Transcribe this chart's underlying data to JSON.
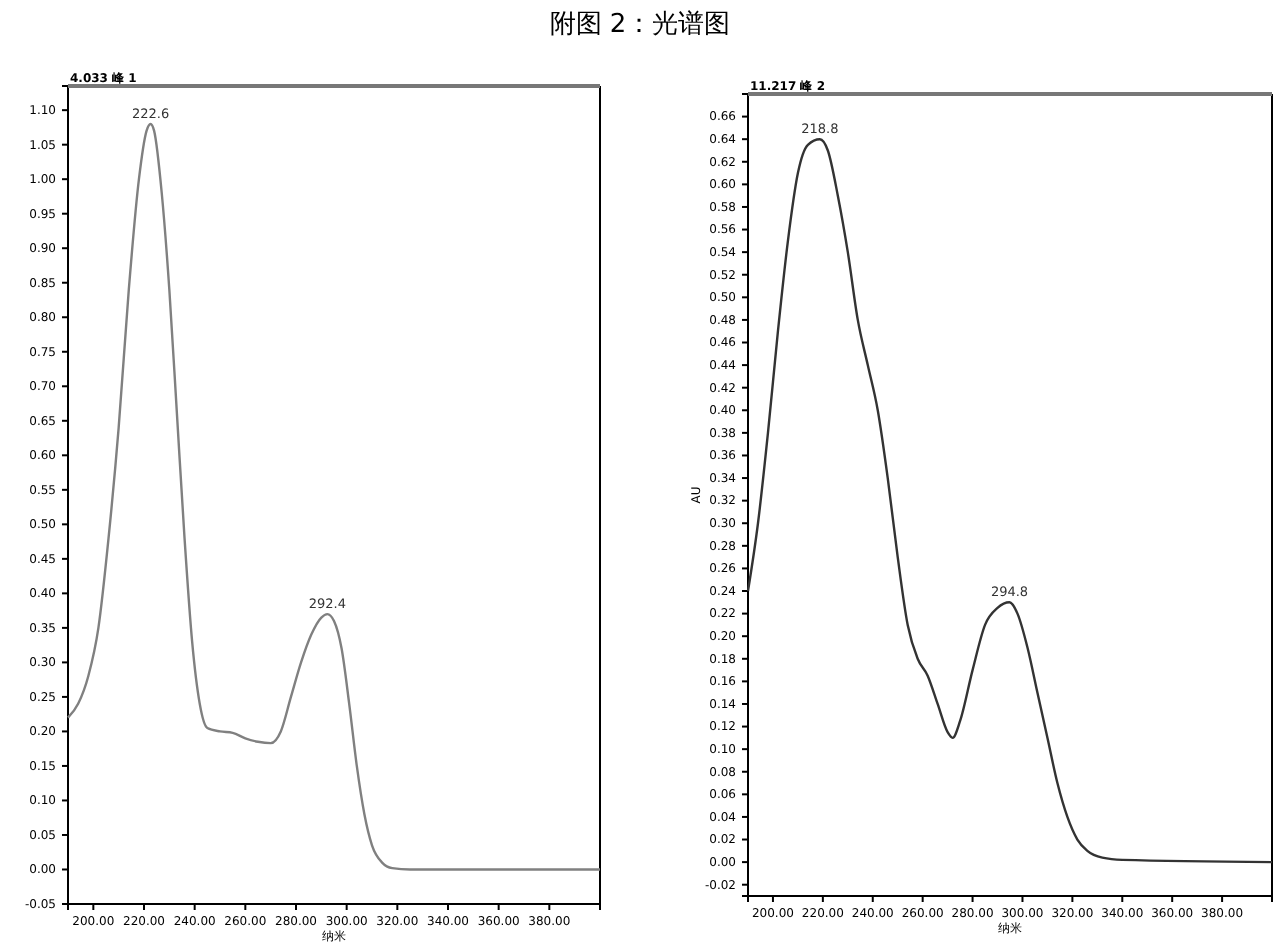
{
  "chart_data": [
    {
      "type": "line",
      "title": "附图 2：光谱图",
      "xlabel": "纳米",
      "xlim": [
        190,
        400
      ],
      "xticks": [
        {
          "value": 200,
          "label": "200.00"
        },
        {
          "value": 220,
          "label": "220.00"
        },
        {
          "value": 240,
          "label": "240.00"
        },
        {
          "value": 260,
          "label": "260.00"
        },
        {
          "value": 280,
          "label": "280.00"
        },
        {
          "value": 300,
          "label": "300.00"
        },
        {
          "value": 320,
          "label": "320.00"
        },
        {
          "value": 340,
          "label": "340.00"
        },
        {
          "value": 360,
          "label": "360.00"
        },
        {
          "value": 380,
          "label": "380.00"
        }
      ],
      "ylim": [
        -0.05,
        1.135
      ],
      "yticks": [
        {
          "value": -0.05,
          "label": "-0.05"
        },
        {
          "value": 0,
          "label": "0.00"
        },
        {
          "value": 0.05,
          "label": "0.05"
        },
        {
          "value": 0.1,
          "label": "0.10"
        },
        {
          "value": 0.15,
          "label": "0.15"
        },
        {
          "value": 0.2,
          "label": "0.20"
        },
        {
          "value": 0.25,
          "label": "0.25"
        },
        {
          "value": 0.3,
          "label": "0.30"
        },
        {
          "value": 0.35,
          "label": "0.35"
        },
        {
          "value": 0.4,
          "label": "0.40"
        },
        {
          "value": 0.45,
          "label": "0.45"
        },
        {
          "value": 0.5,
          "label": "0.50"
        },
        {
          "value": 0.55,
          "label": "0.55"
        },
        {
          "value": 0.6,
          "label": "0.60"
        },
        {
          "value": 0.65,
          "label": "0.65"
        },
        {
          "value": 0.7,
          "label": "0.70"
        },
        {
          "value": 0.75,
          "label": "0.75"
        },
        {
          "value": 0.8,
          "label": "0.80"
        },
        {
          "value": 0.85,
          "label": "0.85"
        },
        {
          "value": 0.9,
          "label": "0.90"
        },
        {
          "value": 0.95,
          "label": "0.95"
        },
        {
          "value": 1.0,
          "label": "1.00"
        },
        {
          "value": 1.05,
          "label": "1.05"
        },
        {
          "value": 1.1,
          "label": "1.10"
        }
      ],
      "grid": false,
      "series": [
        {
          "color": "#808080",
          "x": [
            190,
            194,
            198,
            202,
            206,
            210,
            214,
            218,
            221,
            222.6,
            224,
            227,
            230,
            233,
            236,
            239,
            242,
            245,
            250,
            255,
            260,
            265,
            270,
            274,
            278,
            282,
            286,
            290,
            292.4,
            295,
            298,
            301,
            304,
            307,
            310,
            314,
            318,
            325,
            400
          ],
          "values": [
            0.22,
            0.24,
            0.28,
            0.35,
            0.48,
            0.64,
            0.84,
            1.0,
            1.07,
            1.08,
            1.07,
            0.98,
            0.84,
            0.66,
            0.48,
            0.33,
            0.24,
            0.205,
            0.2,
            0.198,
            0.19,
            0.185,
            0.183,
            0.2,
            0.25,
            0.3,
            0.34,
            0.365,
            0.37,
            0.36,
            0.32,
            0.24,
            0.15,
            0.08,
            0.035,
            0.01,
            0.002,
            0,
            0
          ]
        }
      ],
      "annotations": [
        "4.033 峰 1",
        {
          "text": "222.6",
          "x": 222.6,
          "y": 1.08
        },
        {
          "text": "292.4",
          "x": 292.4,
          "y": 0.37
        }
      ]
    },
    {
      "type": "line",
      "xlabel": "纳米",
      "ylabel": "AU",
      "xlim": [
        190,
        400
      ],
      "xticks": [
        {
          "value": 200,
          "label": "200.00"
        },
        {
          "value": 220,
          "label": "220.00"
        },
        {
          "value": 240,
          "label": "240.00"
        },
        {
          "value": 260,
          "label": "260.00"
        },
        {
          "value": 280,
          "label": "280.00"
        },
        {
          "value": 300,
          "label": "300.00"
        },
        {
          "value": 320,
          "label": "320.00"
        },
        {
          "value": 340,
          "label": "340.00"
        },
        {
          "value": 360,
          "label": "360.00"
        },
        {
          "value": 380,
          "label": "380.00"
        }
      ],
      "ylim": [
        -0.03,
        0.68
      ],
      "yticks": [
        {
          "value": -0.02,
          "label": "-0.02"
        },
        {
          "value": 0,
          "label": "0.00"
        },
        {
          "value": 0.02,
          "label": "0.02"
        },
        {
          "value": 0.04,
          "label": "0.04"
        },
        {
          "value": 0.06,
          "label": "0.06"
        },
        {
          "value": 0.08,
          "label": "0.08"
        },
        {
          "value": 0.1,
          "label": "0.10"
        },
        {
          "value": 0.12,
          "label": "0.12"
        },
        {
          "value": 0.14,
          "label": "0.14"
        },
        {
          "value": 0.16,
          "label": "0.16"
        },
        {
          "value": 0.18,
          "label": "0.18"
        },
        {
          "value": 0.2,
          "label": "0.20"
        },
        {
          "value": 0.22,
          "label": "0.22"
        },
        {
          "value": 0.24,
          "label": "0.24"
        },
        {
          "value": 0.26,
          "label": "0.26"
        },
        {
          "value": 0.28,
          "label": "0.28"
        },
        {
          "value": 0.3,
          "label": "0.30"
        },
        {
          "value": 0.32,
          "label": "0.32"
        },
        {
          "value": 0.34,
          "label": "0.34"
        },
        {
          "value": 0.36,
          "label": "0.36"
        },
        {
          "value": 0.38,
          "label": "0.38"
        },
        {
          "value": 0.4,
          "label": "0.40"
        },
        {
          "value": 0.42,
          "label": "0.42"
        },
        {
          "value": 0.44,
          "label": "0.44"
        },
        {
          "value": 0.46,
          "label": "0.46"
        },
        {
          "value": 0.48,
          "label": "0.48"
        },
        {
          "value": 0.5,
          "label": "0.50"
        },
        {
          "value": 0.52,
          "label": "0.52"
        },
        {
          "value": 0.54,
          "label": "0.54"
        },
        {
          "value": 0.56,
          "label": "0.56"
        },
        {
          "value": 0.58,
          "label": "0.58"
        },
        {
          "value": 0.6,
          "label": "0.60"
        },
        {
          "value": 0.62,
          "label": "0.62"
        },
        {
          "value": 0.64,
          "label": "0.64"
        },
        {
          "value": 0.66,
          "label": "0.66"
        }
      ],
      "grid": false,
      "series": [
        {
          "color": "#333333",
          "x": [
            190,
            194,
            198,
            202,
            206,
            210,
            214,
            218.8,
            222,
            226,
            230,
            234,
            238,
            242,
            246,
            250,
            254,
            258,
            262,
            266,
            270,
            272,
            275,
            280,
            285,
            290,
            294.8,
            298,
            302,
            306,
            310,
            314,
            318,
            322,
            326,
            332,
            340,
            400
          ],
          "values": [
            0.24,
            0.3,
            0.38,
            0.47,
            0.55,
            0.61,
            0.635,
            0.64,
            0.63,
            0.59,
            0.54,
            0.48,
            0.44,
            0.4,
            0.34,
            0.27,
            0.21,
            0.18,
            0.165,
            0.14,
            0.115,
            0.11,
            0.125,
            0.17,
            0.21,
            0.225,
            0.23,
            0.22,
            0.19,
            0.15,
            0.11,
            0.07,
            0.04,
            0.02,
            0.01,
            0.004,
            0.002,
            0
          ]
        }
      ],
      "annotations": [
        "11.217 峰 2",
        {
          "text": "218.8",
          "x": 218.8,
          "y": 0.64
        },
        {
          "text": "294.8",
          "x": 294.8,
          "y": 0.23
        }
      ]
    }
  ]
}
